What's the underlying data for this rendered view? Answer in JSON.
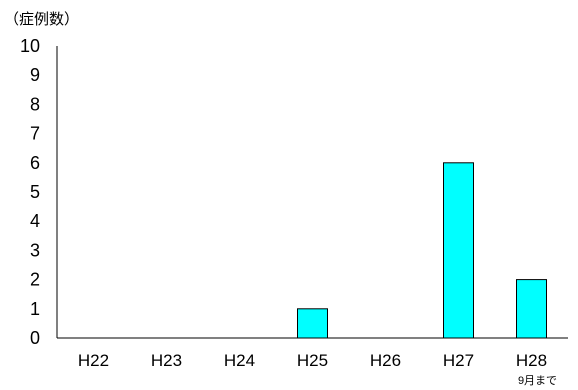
{
  "chart_data": {
    "type": "bar",
    "ylabel": "（症例数）",
    "categories": [
      "H22",
      "H23",
      "H24",
      "H25",
      "H26",
      "H27",
      "H28"
    ],
    "values": [
      0,
      0,
      0,
      1,
      0,
      6,
      2
    ],
    "ylim": [
      0,
      10
    ],
    "yticks": [
      0,
      1,
      2,
      3,
      4,
      5,
      6,
      7,
      8,
      9,
      10
    ],
    "category_note": {
      "category": "H28",
      "text": "9月まで"
    },
    "bar_color": "#00FFFF",
    "bar_stroke": "#000000",
    "grid": false,
    "legend": "none"
  }
}
